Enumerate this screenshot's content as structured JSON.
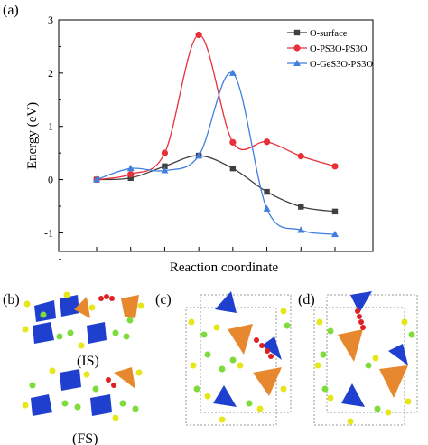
{
  "panels": {
    "a": "(a)",
    "b": "(b)",
    "c": "(c)",
    "d": "(d)",
    "is_label": "(IS)",
    "fs_label": "(FS)"
  },
  "chart_data": {
    "type": "line",
    "title": "",
    "xlabel": "Reaction coordinate",
    "ylabel": "Energy (eV)",
    "x": [
      0,
      1,
      2,
      3,
      4,
      5,
      6,
      7
    ],
    "ylim": [
      -1.35,
      3
    ],
    "yticks": [
      "3",
      "2",
      "1",
      "0",
      "-1"
    ],
    "legend_position": "top-right",
    "series": [
      {
        "name": "O-surface",
        "color": "#404040",
        "marker": "square",
        "values": [
          0,
          0.03,
          0.25,
          0.45,
          0.21,
          -0.23,
          -0.51,
          -0.6
        ]
      },
      {
        "name": "O-PS3O-PS3O",
        "color": "#e8303a",
        "marker": "circle",
        "values": [
          0,
          0.1,
          0.5,
          2.72,
          0.7,
          0.71,
          0.44,
          0.25
        ]
      },
      {
        "name": "O-GeS3O-PS3O",
        "color": "#3f7fe0",
        "marker": "triangle",
        "values": [
          0,
          0.21,
          0.17,
          0.45,
          2.0,
          -0.55,
          -0.95,
          -1.03
        ]
      }
    ]
  },
  "structure_colors": {
    "tetrahedron_blue": "#1f3fcf",
    "tetrahedron_orange": "#e8882e",
    "sulfur_yellow": "#e6e61a",
    "lithium_green": "#7ddc3a",
    "oxygen_red": "#e02020"
  }
}
